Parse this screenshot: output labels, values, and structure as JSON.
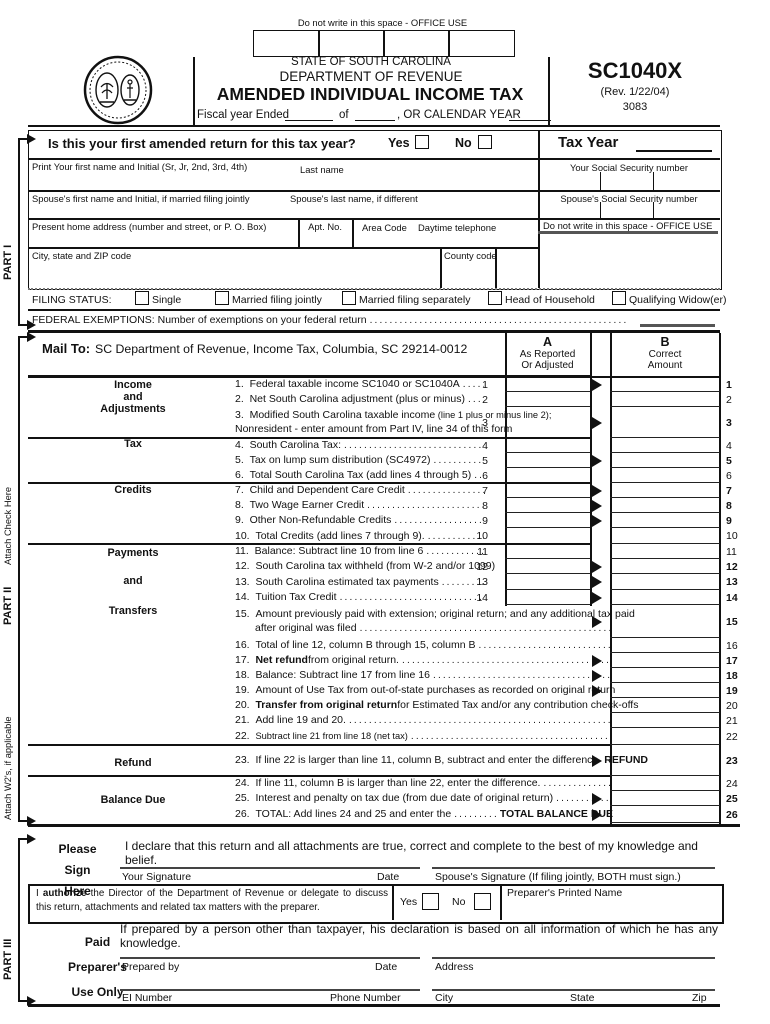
{
  "header": {
    "office_note": "Do not write in this space - OFFICE USE",
    "state": "STATE OF SOUTH CAROLINA",
    "dept": "DEPARTMENT OF REVENUE",
    "title": "AMENDED INDIVIDUAL INCOME TAX",
    "fiscal_ended": "Fiscal year Ended",
    "fiscal_of": "of",
    "fiscal_or": ", OR CALENDAR YEAR",
    "form_no": "SC1040X",
    "rev": "(Rev. 1/22/04)",
    "code": "3083",
    "office_box_count": 4
  },
  "part1": {
    "label": "PART I",
    "question": "Is this your first amended return for this tax year?",
    "yes": "Yes",
    "no": "No",
    "tax_year": "Tax Year",
    "first_name": "Print Your first name and Initial  (Sr, Jr, 2nd, 3rd, 4th)",
    "last_name": "Last name",
    "your_ssn": "Your  Social Security number",
    "spouse_first": "Spouse's first name and Initial, if married filing jointly",
    "spouse_last": "Spouse's last name, if different",
    "spouse_ssn": "Spouse's Social Security number",
    "address": "Present home address (number and street, or P. O. Box)",
    "apt": "Apt. No.",
    "area_code": "Area Code",
    "daytime": "Daytime telephone",
    "office_use": "Do not write in this space - OFFICE USE",
    "city": "City, state and ZIP code",
    "county": "County code",
    "filing_status": "FILING STATUS:",
    "statuses": [
      "Single",
      "Married filing jointly",
      "Married filing separately",
      "Head of Household",
      "Qualifying  Widow(er)"
    ],
    "exemptions": "FEDERAL EXEMPTIONS:   Number of exemptions on your federal return"
  },
  "part2": {
    "label": "PART II",
    "attach_check": "Attach Check Here",
    "attach_w2": "Attach W2's, if applicable",
    "mail_to": "Mail To:",
    "mail_addr": "SC Department of Revenue, Income Tax, Columbia, SC 29214-0012",
    "col_a": [
      "A",
      "As Reported",
      "Or Adjusted"
    ],
    "col_b": [
      "B",
      "Correct",
      "Amount"
    ],
    "sections": [
      "Income",
      "and",
      "Adjustments",
      "Tax",
      "Credits",
      "Payments",
      "and",
      "Transfers",
      "Refund",
      "Balance Due"
    ],
    "lines": [
      {
        "n": "1",
        "t": "Federal taxable income SC1040 or SC1040A",
        "a": true,
        "colA": true,
        "bn": true
      },
      {
        "n": "2",
        "t": "Net South Carolina adjustment (plus or minus)",
        "colA": true
      },
      {
        "n": "3",
        "t": "Modified South Carolina taxable income",
        "small": "(line 1 plus or minus line 2);",
        "t2": "Nonresident - enter amount from Part IV, line 34 of this form",
        "a": true,
        "colA": true,
        "bn": true
      },
      {
        "n": "4",
        "t": "South Carolina Tax:",
        "colA": true,
        "sep": true
      },
      {
        "n": "5",
        "t": "Tax on lump sum distribution (SC4972)",
        "a": true,
        "colA": true,
        "bn": true
      },
      {
        "n": "6",
        "t": "Total South Carolina Tax (add lines 4 through 5)",
        "colA": true
      },
      {
        "n": "7",
        "t": "Child and Dependent Care Credit",
        "a": true,
        "colA": true,
        "bn": true,
        "sep": true
      },
      {
        "n": "8",
        "t": "Two Wage Earner Credit",
        "a": true,
        "colA": true,
        "bn": true
      },
      {
        "n": "9",
        "t": "Other Non-Refundable Credits",
        "a": true,
        "colA": true,
        "bn": true
      },
      {
        "n": "10",
        "t": "Total Credits (add lines 7 through 9).",
        "colA": true
      },
      {
        "n": "11",
        "t": "Balance: Subtract line 10 from line 6",
        "colA": true,
        "sep": true
      },
      {
        "n": "12",
        "t": "South Carolina tax withheld (from W-2 and/or 1099)",
        "a": true,
        "colA": true,
        "bn": true
      },
      {
        "n": "13",
        "t": "South Carolina estimated tax payments",
        "a": true,
        "colA": true,
        "bn": true
      },
      {
        "n": "14",
        "t": "Tuition Tax Credit",
        "a": true,
        "colA": true,
        "bn": true
      },
      {
        "n": "15",
        "t": "Amount previously paid with extension; original return; and any additional tax paid",
        "t2": "after original was filed",
        "a": true,
        "bn": true,
        "dots2": true
      },
      {
        "n": "16",
        "t": "Total of line 12, column B through 15, column B"
      },
      {
        "n": "17",
        "bp": "Net refund",
        "t": " from original return.",
        "a": true,
        "bn": true
      },
      {
        "n": "18",
        "t": "Balance: Subtract line 17 from line 16",
        "a": true,
        "bn": true
      },
      {
        "n": "19",
        "t": "Amount of Use Tax from out-of-state purchases as recorded on original return",
        "a": true,
        "bn": true
      },
      {
        "n": "20",
        "bp": "Transfer from original return",
        "t": " for Estimated Tax and/or any contribution check-offs",
        "sd": true
      },
      {
        "n": "21",
        "t": "Add line 19 and 20."
      },
      {
        "n": "22",
        "t": "Subtract line 21 from line 18 (net tax)",
        "sm": true
      },
      {
        "n": "23",
        "t": "If line 22 is larger than line 11, column B, subtract and enter the difference",
        "bs": "REFUND",
        "a": true,
        "bn": true,
        "sep": true,
        "sepw": true
      },
      {
        "n": "24",
        "t": "If line 11, column B  is larger than line 22, enter the difference.",
        "sep": true,
        "sepw": true
      },
      {
        "n": "25",
        "t": "Interest and penalty on tax due (from due date of original return)",
        "a": true,
        "bn": true
      },
      {
        "n": "26",
        "t": "TOTAL: Add lines 24 and 25 and enter the",
        "bs": "TOTAL BALANCE DUE",
        "a": true,
        "bn": true
      }
    ]
  },
  "part3": {
    "label": "PART III",
    "sign_lines": [
      "Please",
      "Sign",
      "Here"
    ],
    "declaration": "I declare that this return and all attachments are true, correct and complete to the best of my knowledge and belief.",
    "your_sig": "Your Signature",
    "date": "Date",
    "spouse_sig": "Spouse's Signature (If filing jointly, BOTH must sign.)",
    "auth_pre": "I ",
    "auth_bold": "authorize",
    "auth_post": " the Director of the Department of Revenue or delegate to discuss this return, attachments and related tax matters with the preparer.",
    "yes": "Yes",
    "no": "No",
    "preparer_name": "Preparer's Printed Name",
    "paid_lines": [
      "Paid",
      "Preparer's",
      "Use Only"
    ],
    "prepared_stmt": "If prepared by a person other than taxpayer, his declaration is based on all information of which he has any knowledge.",
    "prepared_by": "Prepared by",
    "date2": "Date",
    "address": "Address",
    "ei": "EI Number",
    "phone": "Phone Number",
    "city": "City",
    "state": "State",
    "zip": "Zip"
  }
}
